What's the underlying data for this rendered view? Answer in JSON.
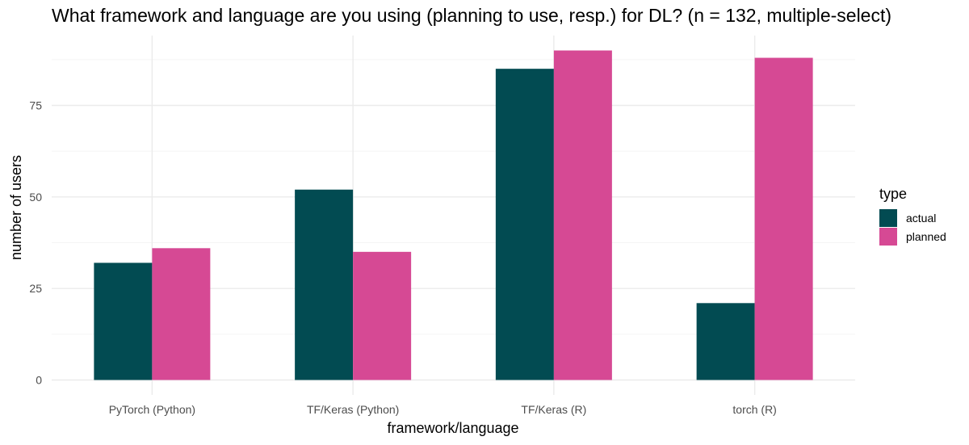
{
  "chart_data": {
    "type": "bar",
    "title": "What framework and language are you using (planning to use, resp.) for DL? (n = 132, multiple-select)",
    "xlabel": "framework/language",
    "ylabel": "number of users",
    "categories": [
      "PyTorch (Python)",
      "TF/Keras (Python)",
      "TF/Keras (R)",
      "torch (R)"
    ],
    "series": [
      {
        "name": "actual",
        "color": "#024b52",
        "values": [
          32,
          52,
          85,
          21
        ]
      },
      {
        "name": "planned",
        "color": "#d64994",
        "values": [
          36,
          35,
          90,
          88
        ]
      }
    ],
    "ylim": [
      0,
      94.5
    ],
    "yticks": [
      0,
      25,
      50,
      75
    ],
    "grid": true,
    "legend": {
      "title": "type",
      "position": "right"
    }
  }
}
